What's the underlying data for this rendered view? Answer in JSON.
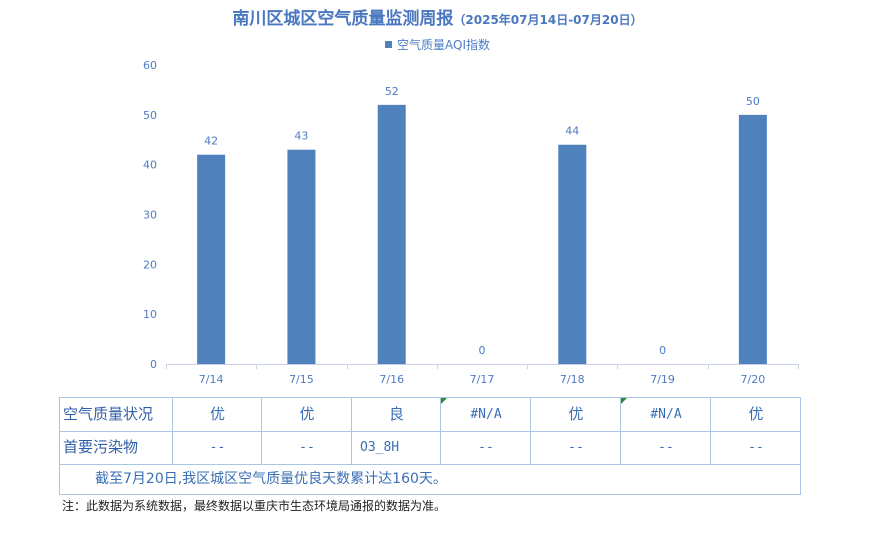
{
  "title": {
    "main": "南川区城区空气质量监测周报",
    "sub": "（2025年07月14日-07月20日）"
  },
  "chart_data": {
    "type": "bar",
    "categories": [
      "7/14",
      "7/15",
      "7/16",
      "7/17",
      "7/18",
      "7/19",
      "7/20"
    ],
    "series": [
      {
        "name": "空气质量AQI指数",
        "values": [
          42,
          43,
          52,
          0,
          44,
          0,
          50
        ]
      }
    ],
    "data_labels": [
      "42",
      "43",
      "52",
      "0",
      "44",
      "0",
      "50"
    ],
    "ylim": [
      0,
      60
    ],
    "yticks": [
      "0",
      "10",
      "20",
      "30",
      "40",
      "50",
      "60"
    ],
    "grid": false,
    "legend_position": "top",
    "bar_color": "#4f81bd"
  },
  "table": {
    "row1_label": "空气质量状况",
    "row1_values": [
      "优",
      "优",
      "良",
      "#N/A",
      "优",
      "#N/A",
      "优"
    ],
    "row2_label": "首要污染物",
    "row2_values": [
      "--",
      "--",
      "O3_8H",
      "--",
      "--",
      "--",
      "--"
    ],
    "summary": "截至7月20日,我区城区空气质量优良天数累计达160天。"
  },
  "note": "注：此数据为系统数据，最终数据以重庆市生态环境局通报的数据为准。"
}
